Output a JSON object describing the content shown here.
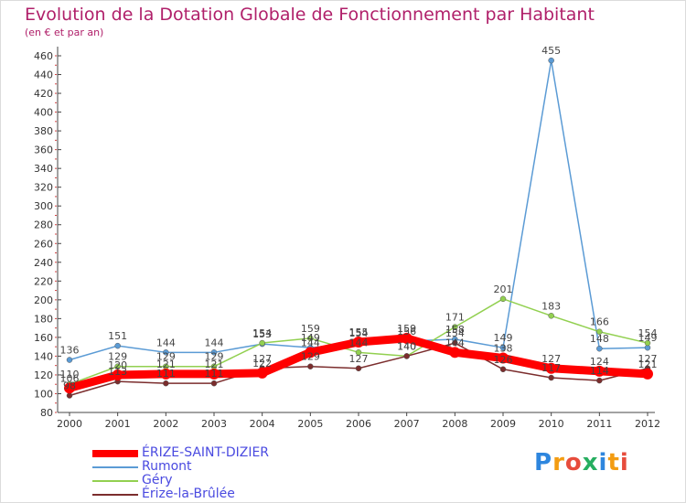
{
  "header": {
    "title": "Evolution de la Dotation Globale de Fonctionnement par Habitant",
    "subtitle": "(en € et par an)"
  },
  "chart_data": {
    "type": "line",
    "title": "Evolution de la Dotation Globale de Fonctionnement par Habitant",
    "subtitle": "(en € et par an)",
    "xlabel": "",
    "ylabel": "",
    "ylim": [
      80,
      460
    ],
    "yticks": [
      80,
      100,
      120,
      140,
      160,
      180,
      200,
      220,
      240,
      260,
      280,
      300,
      320,
      340,
      360,
      380,
      400,
      420,
      440,
      460
    ],
    "categories": [
      "2000",
      "2001",
      "2002",
      "2003",
      "2004",
      "2005",
      "2006",
      "2007",
      "2008",
      "2009",
      "2010",
      "2011",
      "2012"
    ],
    "grid": false,
    "legend_position": "bottom-left",
    "series": [
      {
        "name": "ÉRIZE-SAINT-DIZIER",
        "color": "#ff0000",
        "values": [
          106,
          120,
          121,
          121,
          122,
          144,
          155,
          159,
          144,
          138,
          127,
          124,
          121
        ]
      },
      {
        "name": "Rumont",
        "color": "#5b9bd5",
        "values": [
          136,
          151,
          144,
          144,
          153,
          149,
          154,
          156,
          158,
          149,
          455,
          148,
          149
        ]
      },
      {
        "name": "Géry",
        "color": "#92d050",
        "values": [
          110,
          129,
          129,
          129,
          154,
          159,
          144,
          140,
          171,
          201,
          183,
          166,
          154
        ]
      },
      {
        "name": "Érize-la-Brûlée",
        "color": "#7b2d2d",
        "values": [
          98,
          113,
          111,
          111,
          127,
          129,
          127,
          140,
          154,
          126,
          117,
          114,
          127
        ]
      }
    ]
  },
  "logo": {
    "letters": [
      "P",
      "r",
      "o",
      "x",
      "i",
      "t",
      "i"
    ],
    "colors": [
      "#2e86de",
      "#f39c12",
      "#e74c3c",
      "#27ae60",
      "#2e86de",
      "#f39c12",
      "#e74c3c"
    ]
  }
}
